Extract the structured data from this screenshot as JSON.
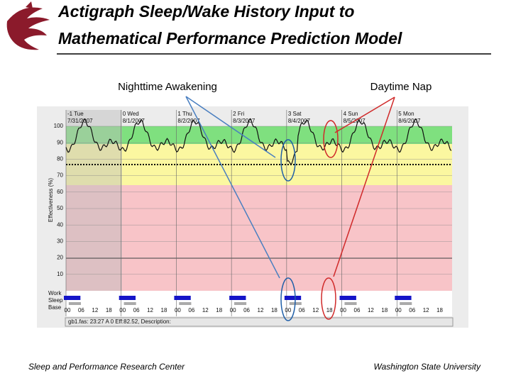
{
  "header": {
    "title_lines": [
      "Actigraph Sleep/Wake History Input to",
      "Mathematical Performance Prediction Model"
    ]
  },
  "callouts": {
    "awakening": "Nighttime Awakening",
    "nap": "Daytime Nap"
  },
  "screenshot": {
    "y_axis_label": "Effectiveness (%)",
    "yticks": [
      "100",
      "90",
      "80",
      "70",
      "60",
      "50",
      "40",
      "30",
      "20",
      "10"
    ],
    "days": [
      {
        "name": "-1 Tue",
        "date": "7/31/2007"
      },
      {
        "name": "0 Wed",
        "date": "8/1/2007"
      },
      {
        "name": "1 Thu",
        "date": "8/2/2007"
      },
      {
        "name": "2 Fri",
        "date": "8/3/2007"
      },
      {
        "name": "3 Sat",
        "date": "8/4/2007"
      },
      {
        "name": "4 Sun",
        "date": "8/5/2007"
      },
      {
        "name": "5 Mon",
        "date": "8/6/2007"
      }
    ],
    "row_labels": [
      "Work",
      "Sleep",
      "Base"
    ],
    "hours": [
      "00",
      "06",
      "12",
      "18"
    ],
    "status": "gb1.fas: 23:27 A 0 Eff:82.52, Description:"
  },
  "footer": {
    "left": "Sleep and Performance Research Center",
    "right": "Washington State University"
  }
}
